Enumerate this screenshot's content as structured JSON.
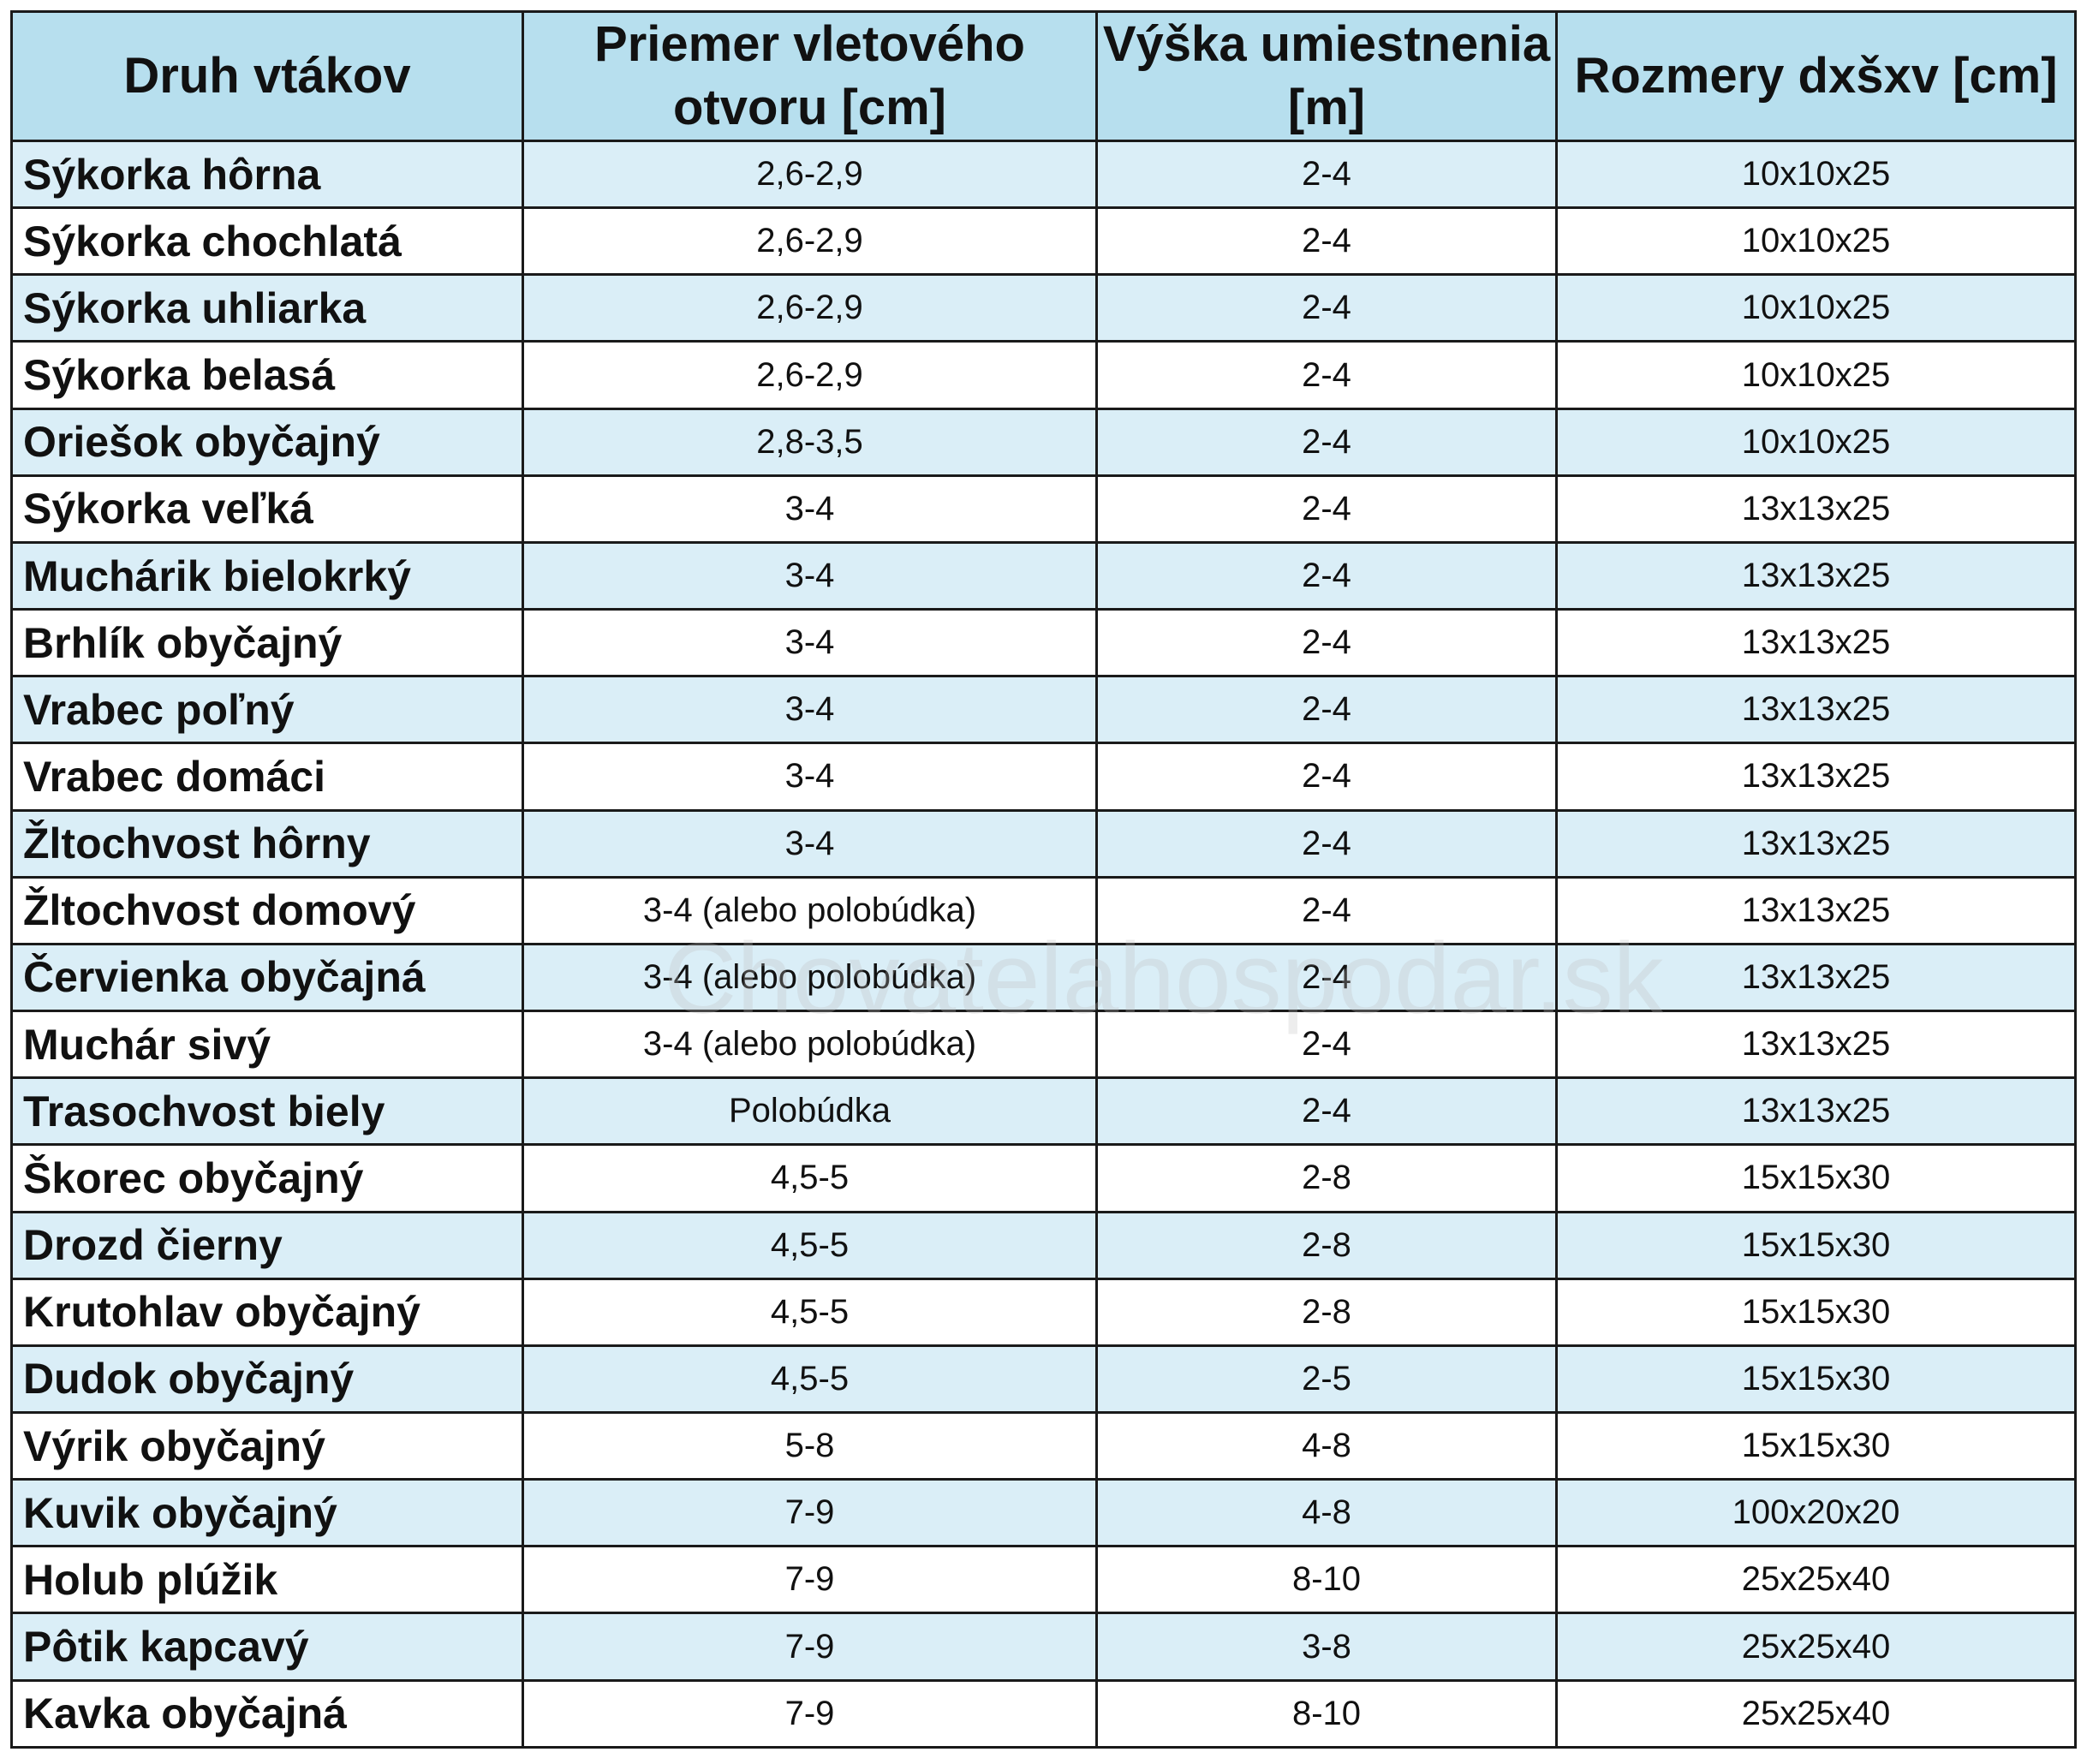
{
  "headers": [
    "Druh vtákov",
    "Priemer vletového otvoru [cm]",
    "Výška umiestnenia [m]",
    "Rozmery dxšxv [cm]"
  ],
  "rows": [
    [
      "Sýkorka hôrna",
      "2,6-2,9",
      "2-4",
      "10x10x25"
    ],
    [
      "Sýkorka chochlatá",
      "2,6-2,9",
      "2-4",
      "10x10x25"
    ],
    [
      "Sýkorka uhliarka",
      "2,6-2,9",
      "2-4",
      "10x10x25"
    ],
    [
      "Sýkorka belasá",
      "2,6-2,9",
      "2-4",
      "10x10x25"
    ],
    [
      "Oriešok obyčajný",
      "2,8-3,5",
      "2-4",
      "10x10x25"
    ],
    [
      "Sýkorka veľká",
      "3-4",
      "2-4",
      "13x13x25"
    ],
    [
      "Muchárik bielokrký",
      "3-4",
      "2-4",
      "13x13x25"
    ],
    [
      "Brhlík obyčajný",
      "3-4",
      "2-4",
      "13x13x25"
    ],
    [
      "Vrabec poľný",
      "3-4",
      "2-4",
      "13x13x25"
    ],
    [
      "Vrabec domáci",
      "3-4",
      "2-4",
      "13x13x25"
    ],
    [
      "Žltochvost hôrny",
      "3-4",
      "2-4",
      "13x13x25"
    ],
    [
      "Žltochvost domový",
      "3-4 (alebo polobúdka)",
      "2-4",
      "13x13x25"
    ],
    [
      "Červienka obyčajná",
      "3-4 (alebo polobúdka)",
      "2-4",
      "13x13x25"
    ],
    [
      "Muchár sivý",
      "3-4 (alebo polobúdka)",
      "2-4",
      "13x13x25"
    ],
    [
      "Trasochvost biely",
      "Polobúdka",
      "2-4",
      "13x13x25"
    ],
    [
      "Škorec obyčajný",
      "4,5-5",
      "2-8",
      "15x15x30"
    ],
    [
      "Drozd čierny",
      "4,5-5",
      "2-8",
      "15x15x30"
    ],
    [
      "Krutohlav obyčajný",
      "4,5-5",
      "2-8",
      "15x15x30"
    ],
    [
      "Dudok obyčajný",
      "4,5-5",
      "2-5",
      "15x15x30"
    ],
    [
      "Výrik obyčajný",
      "5-8",
      "4-8",
      "15x15x30"
    ],
    [
      "Kuvik obyčajný",
      "7-9",
      "4-8",
      "100x20x20"
    ],
    [
      "Holub plúžik",
      "7-9",
      "8-10",
      "25x25x40"
    ],
    [
      "Pôtik kapcavý",
      "7-9",
      "3-8",
      "25x25x40"
    ],
    [
      "Kavka obyčajná",
      "7-9",
      "8-10",
      "25x25x40"
    ]
  ],
  "watermark": "Chovatelahospodar.sk",
  "colors": {
    "header_bg": "#b7dfee",
    "stripe_bg": "#daeef7",
    "row_bg": "#ffffff",
    "border": "#1a1a1a"
  }
}
